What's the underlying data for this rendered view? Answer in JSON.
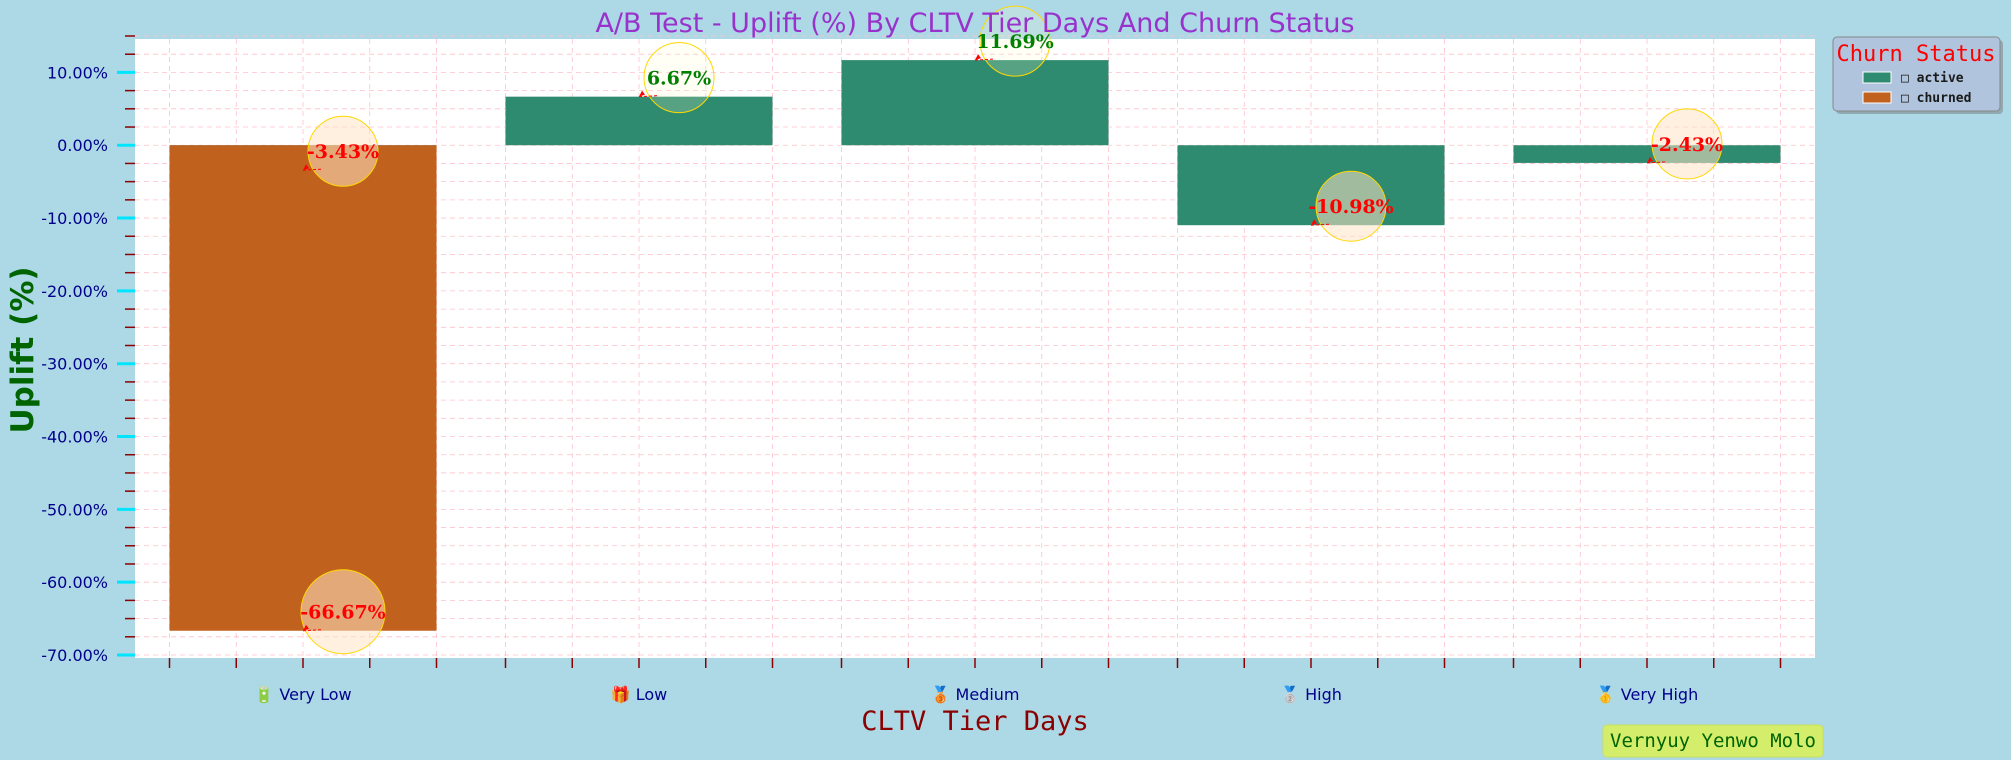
{
  "chart_data": {
    "type": "bar",
    "title": "A/B Test - Uplift (%) By CLTV Tier Days And Churn Status",
    "xlabel": "CLTV Tier Days",
    "ylabel": "Uplift (%)",
    "categories": [
      {
        "icon": "🔋",
        "label": "Very Low"
      },
      {
        "icon": "🎁",
        "label": "Low"
      },
      {
        "icon": "🥉",
        "label": "Medium"
      },
      {
        "icon": "🥈",
        "label": "High"
      },
      {
        "icon": "🥇",
        "label": "Very High"
      }
    ],
    "series": [
      {
        "name": "active",
        "color": "#2e8b70",
        "values": [
          -3.43,
          6.67,
          11.69,
          -10.98,
          -2.43
        ]
      },
      {
        "name": "churned",
        "color": "#c0621e",
        "values": [
          -66.67,
          null,
          null,
          null,
          null
        ]
      }
    ],
    "ylim": [
      -70,
      15
    ],
    "yticks": [
      10,
      0,
      -10,
      -20,
      -30,
      -40,
      -50,
      -60,
      -70
    ],
    "ytick_labels": [
      "10.00%",
      "0.00%",
      "-10.00%",
      "-20.00%",
      "-30.00%",
      "-40.00%",
      "-50.00%",
      "-60.00%",
      "-70.00%"
    ],
    "annotations": [
      {
        "category": 0,
        "series": "active",
        "value": -3.43,
        "text": "-3.43%",
        "color": "#ff0000"
      },
      {
        "category": 0,
        "series": "churned",
        "value": -66.67,
        "text": "-66.67%",
        "color": "#ff0000"
      },
      {
        "category": 1,
        "series": "active",
        "value": 6.67,
        "text": "6.67%",
        "color": "#008000"
      },
      {
        "category": 2,
        "series": "active",
        "value": 11.69,
        "text": "11.69%",
        "color": "#008000"
      },
      {
        "category": 3,
        "series": "active",
        "value": -10.98,
        "text": "-10.98%",
        "color": "#ff0000"
      },
      {
        "category": 4,
        "series": "active",
        "value": -2.43,
        "text": "-2.43%",
        "color": "#ff0000"
      }
    ],
    "grid": true,
    "legend": {
      "title": "Churn Status",
      "position": "top-right",
      "entries": [
        {
          "name": "active",
          "icon": "□ active"
        },
        {
          "name": "churned",
          "icon": "□ churned"
        }
      ]
    }
  },
  "signature": "Vernyuy Yenwo Molo"
}
